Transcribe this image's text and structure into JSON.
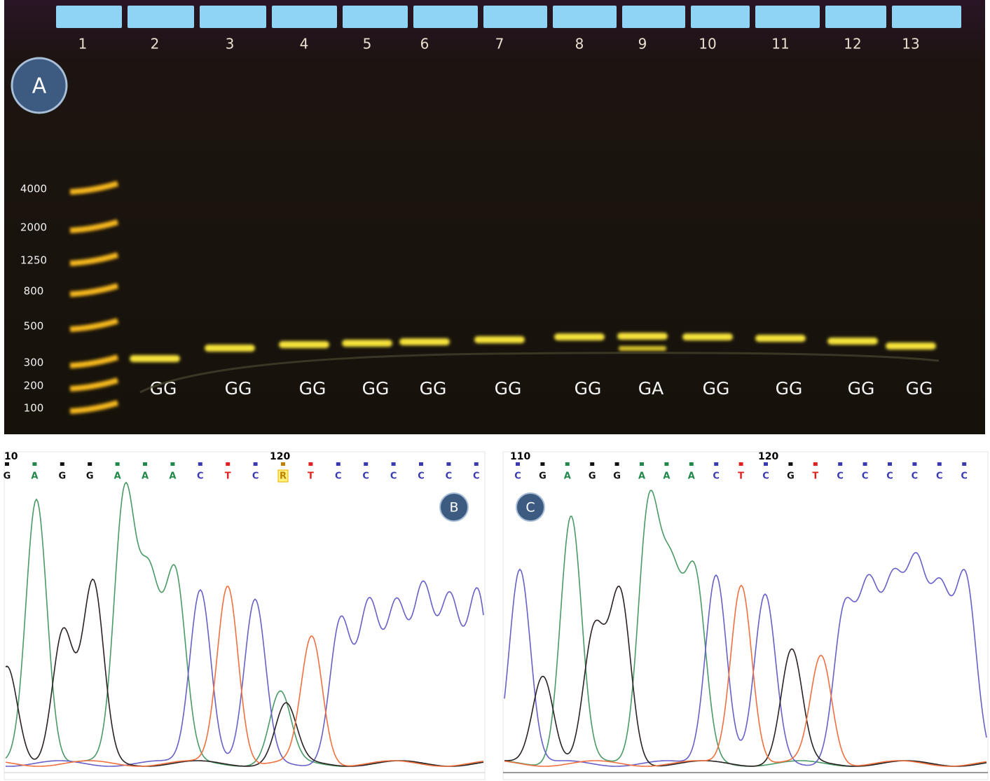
{
  "panel_a": {
    "label": "A",
    "lane_numbers": [
      "1",
      "2",
      "3",
      "4",
      "5",
      "6",
      "7",
      "8",
      "9",
      "10",
      "11",
      "12",
      "13"
    ],
    "ladder_sizes": [
      4000,
      2000,
      1250,
      800,
      500,
      300,
      200,
      100
    ],
    "genotypes": [
      "GG",
      "GG",
      "GG",
      "GG",
      "GG",
      "GG",
      "GG",
      "GA",
      "GG",
      "GG",
      "GG",
      "GG"
    ]
  },
  "panel_b": {
    "label": "B",
    "positions": [
      "10",
      "120"
    ],
    "bases": [
      "G",
      "A",
      "G",
      "G",
      "A",
      "A",
      "A",
      "C",
      "T",
      "C",
      "R",
      "T",
      "C",
      "C",
      "C",
      "C",
      "C",
      "C"
    ]
  },
  "panel_c": {
    "label": "C",
    "positions": [
      "110",
      "120"
    ],
    "bases": [
      "C",
      "G",
      "A",
      "G",
      "G",
      "A",
      "A",
      "A",
      "C",
      "T",
      "C",
      "G",
      "T",
      "C",
      "C",
      "C",
      "C",
      "C",
      "C"
    ]
  }
}
